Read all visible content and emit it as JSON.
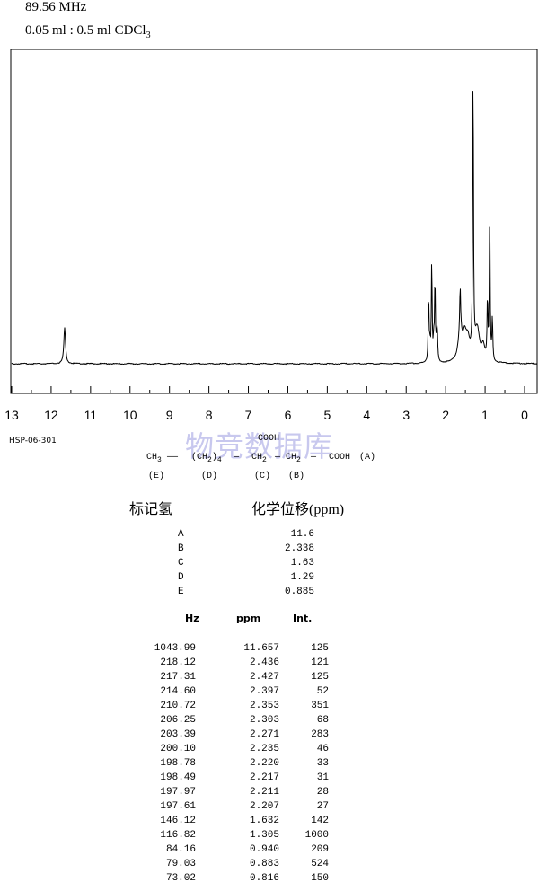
{
  "header": {
    "frequency": "89.56 MHz",
    "solvent_prefix": "0.05 ml : 0.5 ml CDCl",
    "solvent_sub": "3"
  },
  "chart_data": {
    "type": "line",
    "xlabel": "",
    "ylabel": "",
    "xlim": [
      13,
      0
    ],
    "x_reversed": true,
    "x_ticks": [
      "13",
      "12",
      "11",
      "10",
      "9",
      "8",
      "7",
      "6",
      "5",
      "4",
      "3",
      "2",
      "1",
      "0"
    ],
    "grid": false,
    "series": [
      {
        "points_ppm_intensity": [
          [
            11.657,
            125
          ],
          [
            2.436,
            121
          ],
          [
            2.427,
            125
          ],
          [
            2.397,
            52
          ],
          [
            2.353,
            351
          ],
          [
            2.303,
            68
          ],
          [
            2.271,
            283
          ],
          [
            2.235,
            46
          ],
          [
            2.22,
            33
          ],
          [
            2.217,
            31
          ],
          [
            2.211,
            28
          ],
          [
            2.207,
            27
          ],
          [
            1.632,
            142
          ],
          [
            1.305,
            1000
          ],
          [
            0.94,
            209
          ],
          [
            0.883,
            524
          ],
          [
            0.816,
            150
          ]
        ]
      }
    ]
  },
  "catalog_id": "HSP-06-301",
  "watermark": "物竞数据库",
  "structure": {
    "top_label": "COOH",
    "ch3": "CH",
    "ch3_sub": "3",
    "ch2_4": "(CH",
    "ch2_4_sub": "2",
    "ch2_4_close": ")",
    "ch2_4_n": "4",
    "ch2_c": "CH",
    "ch2_c_sub": "2",
    "ch2_b": "CH",
    "ch2_b_sub": "2",
    "cooh": "COOH",
    "a": "(A)",
    "e": "(E)",
    "d": "(D)",
    "c": "(C)",
    "b": "(B)"
  },
  "assignments": {
    "label_header": "标记氢",
    "shift_header": "化学位移(ppm)",
    "rows": [
      {
        "label": "A",
        "shift": "11.6"
      },
      {
        "label": "B",
        "shift": "2.338"
      },
      {
        "label": "C",
        "shift": "1.63"
      },
      {
        "label": "D",
        "shift": "1.29"
      },
      {
        "label": "E",
        "shift": "0.885"
      }
    ]
  },
  "peak_table": {
    "headers": [
      "Hz",
      "ppm",
      "Int."
    ],
    "rows": [
      [
        "1043.99",
        "11.657",
        "125"
      ],
      [
        "218.12",
        "2.436",
        "121"
      ],
      [
        "217.31",
        "2.427",
        "125"
      ],
      [
        "214.60",
        "2.397",
        "52"
      ],
      [
        "210.72",
        "2.353",
        "351"
      ],
      [
        "206.25",
        "2.303",
        "68"
      ],
      [
        "203.39",
        "2.271",
        "283"
      ],
      [
        "200.10",
        "2.235",
        "46"
      ],
      [
        "198.78",
        "2.220",
        "33"
      ],
      [
        "198.49",
        "2.217",
        "31"
      ],
      [
        "197.97",
        "2.211",
        "28"
      ],
      [
        "197.61",
        "2.207",
        "27"
      ],
      [
        "146.12",
        "1.632",
        "142"
      ],
      [
        "116.82",
        "1.305",
        "1000"
      ],
      [
        "84.16",
        "0.940",
        "209"
      ],
      [
        "79.03",
        "0.883",
        "524"
      ],
      [
        "73.02",
        "0.816",
        "150"
      ]
    ]
  }
}
